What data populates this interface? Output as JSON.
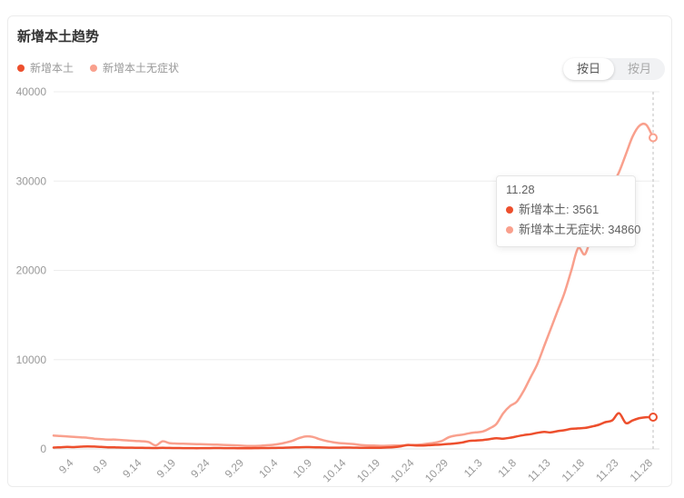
{
  "header": {
    "title": "新增本土趋势"
  },
  "legend": {
    "items": [
      {
        "label": "新增本土",
        "color": "#ed4f2d"
      },
      {
        "label": "新增本土无症状",
        "color": "#f9a08d"
      }
    ]
  },
  "toggle": {
    "options": [
      {
        "label": "按日",
        "active": true
      },
      {
        "label": "按月",
        "active": false
      }
    ]
  },
  "tooltip": {
    "date": "11.28",
    "rows": [
      {
        "label": "新增本土:",
        "value": "3561",
        "color": "#ed4f2d"
      },
      {
        "label": "新增本土无症状:",
        "value": "34860",
        "color": "#f9a08d"
      }
    ]
  },
  "colors": {
    "axis_text": "#999999",
    "grid": "#ededed",
    "axis_line": "#e0e0e0",
    "pointer": "#bfbfbf"
  },
  "chart_data": {
    "type": "line",
    "title": "新增本土趋势",
    "smooth": true,
    "grid": true,
    "legend_position": "top-left",
    "ylim": [
      0,
      40000
    ],
    "yticks": [
      0,
      10000,
      20000,
      30000,
      40000
    ],
    "xticks": [
      "9.4",
      "9.9",
      "9.14",
      "9.19",
      "9.24",
      "9.29",
      "10.4",
      "10.9",
      "10.14",
      "10.19",
      "10.24",
      "10.29",
      "11.3",
      "11.8",
      "11.13",
      "11.18",
      "11.23",
      "11.28"
    ],
    "x": [
      "9.1",
      "9.2",
      "9.3",
      "9.4",
      "9.5",
      "9.6",
      "9.7",
      "9.8",
      "9.9",
      "9.10",
      "9.11",
      "9.12",
      "9.13",
      "9.14",
      "9.15",
      "9.16",
      "9.17",
      "9.18",
      "9.19",
      "9.20",
      "9.21",
      "9.22",
      "9.23",
      "9.24",
      "9.25",
      "9.26",
      "9.27",
      "9.28",
      "9.29",
      "9.30",
      "10.1",
      "10.2",
      "10.3",
      "10.4",
      "10.5",
      "10.6",
      "10.7",
      "10.8",
      "10.9",
      "10.10",
      "10.11",
      "10.12",
      "10.13",
      "10.14",
      "10.15",
      "10.16",
      "10.17",
      "10.18",
      "10.19",
      "10.20",
      "10.21",
      "10.22",
      "10.23",
      "10.24",
      "10.25",
      "10.26",
      "10.27",
      "10.28",
      "10.29",
      "10.30",
      "10.31",
      "11.1",
      "11.2",
      "11.3",
      "11.4",
      "11.5",
      "11.6",
      "11.7",
      "11.8",
      "11.9",
      "11.10",
      "11.11",
      "11.12",
      "11.13",
      "11.14",
      "11.15",
      "11.16",
      "11.17",
      "11.18",
      "11.19",
      "11.20",
      "11.21",
      "11.22",
      "11.23",
      "11.24",
      "11.25",
      "11.26",
      "11.27",
      "11.28"
    ],
    "series": [
      {
        "id": "local",
        "name": "新增本土",
        "color": "#ed4f2d",
        "endpoint_value": 3561,
        "values": [
          150,
          180,
          220,
          200,
          250,
          280,
          260,
          220,
          180,
          170,
          150,
          140,
          130,
          120,
          110,
          100,
          120,
          110,
          100,
          95,
          90,
          85,
          90,
          95,
          100,
          95,
          90,
          85,
          80,
          85,
          90,
          100,
          110,
          120,
          140,
          160,
          180,
          200,
          190,
          170,
          150,
          140,
          145,
          150,
          140,
          135,
          130,
          125,
          130,
          160,
          200,
          300,
          450,
          400,
          380,
          420,
          460,
          500,
          560,
          620,
          720,
          900,
          950,
          1000,
          1100,
          1200,
          1150,
          1250,
          1400,
          1550,
          1650,
          1800,
          1900,
          1850,
          2000,
          2100,
          2250,
          2300,
          2350,
          2500,
          2700,
          3000,
          3200,
          4000,
          2900,
          3200,
          3450,
          3550,
          3561
        ]
      },
      {
        "id": "asymptomatic",
        "name": "新增本土无症状",
        "color": "#f9a08d",
        "endpoint_value": 34860,
        "values": [
          1500,
          1450,
          1400,
          1350,
          1300,
          1250,
          1150,
          1100,
          1050,
          1050,
          1000,
          950,
          900,
          850,
          750,
          400,
          850,
          650,
          600,
          580,
          560,
          540,
          520,
          500,
          480,
          450,
          420,
          400,
          350,
          340,
          350,
          400,
          450,
          550,
          700,
          900,
          1200,
          1400,
          1350,
          1100,
          900,
          750,
          650,
          600,
          550,
          450,
          400,
          380,
          350,
          360,
          380,
          400,
          420,
          450,
          500,
          600,
          700,
          900,
          1300,
          1500,
          1600,
          1750,
          1850,
          1950,
          2300,
          2800,
          4000,
          4800,
          5300,
          6500,
          8000,
          9500,
          11500,
          13500,
          15500,
          17500,
          20000,
          22500,
          21800,
          24000,
          25500,
          27500,
          29500,
          31000,
          33000,
          35000,
          36200,
          36300,
          34860
        ]
      }
    ]
  }
}
